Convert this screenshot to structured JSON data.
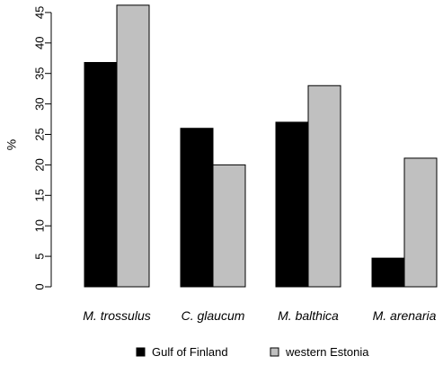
{
  "chart_data": {
    "type": "bar",
    "categories": [
      "M. trossulus",
      "C. glaucum",
      "M. balthica",
      "M. arenaria"
    ],
    "series": [
      {
        "name": "Gulf of Finland",
        "color": "#000000",
        "values": [
          36.8,
          26.0,
          27.0,
          4.7
        ]
      },
      {
        "name": "western Estonia",
        "color": "#c0c0c0",
        "values": [
          46.2,
          20.0,
          33.0,
          21.1
        ]
      }
    ],
    "ylabel": "%",
    "yticks": [
      0,
      5,
      10,
      15,
      20,
      25,
      30,
      35,
      40,
      45
    ],
    "ylim": [
      0,
      46.2
    ],
    "legend_position": "bottom",
    "grid": false
  }
}
